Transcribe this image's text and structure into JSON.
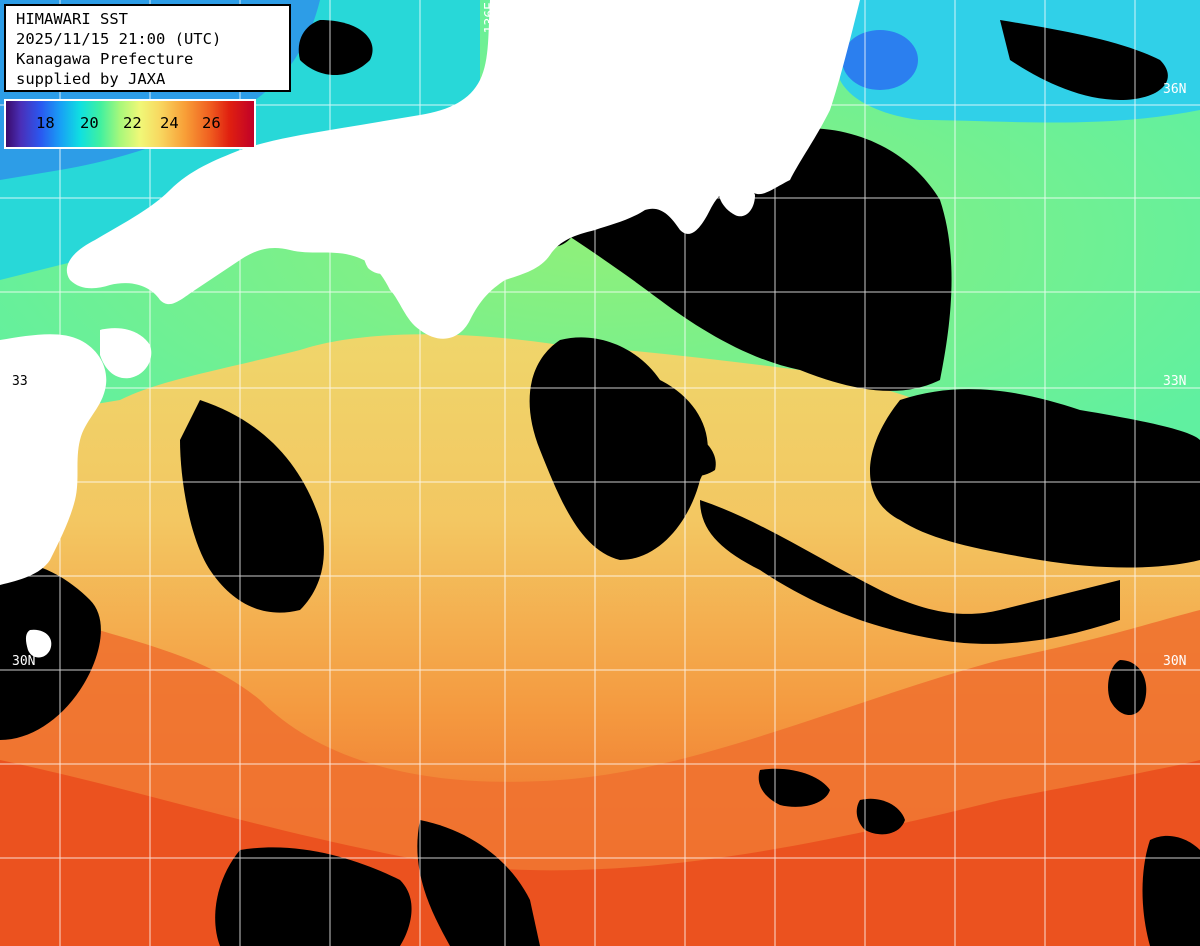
{
  "title": {
    "line1": "HIMAWARI SST",
    "line2": "2025/11/15 21:00 (UTC)",
    "line3": "Kanagawa Prefecture",
    "line4": "supplied by JAXA"
  },
  "legend": {
    "ticks": [
      "18",
      "20",
      "22",
      "24",
      "26"
    ]
  },
  "grid_labels": {
    "lon_136": "136E",
    "lat_36_right": "36N",
    "lat_33_left": "33",
    "lat_33_right": "33N",
    "lat_30_left": "30N",
    "lat_30_right": "30N"
  },
  "colors": {
    "land": "#ffffff",
    "cloud": "#000000",
    "cold": "#2a58f0",
    "cyan": "#10e0e0",
    "green": "#80f090",
    "yellow": "#f0f080",
    "orange": "#f8a040",
    "red": "#f05020"
  }
}
